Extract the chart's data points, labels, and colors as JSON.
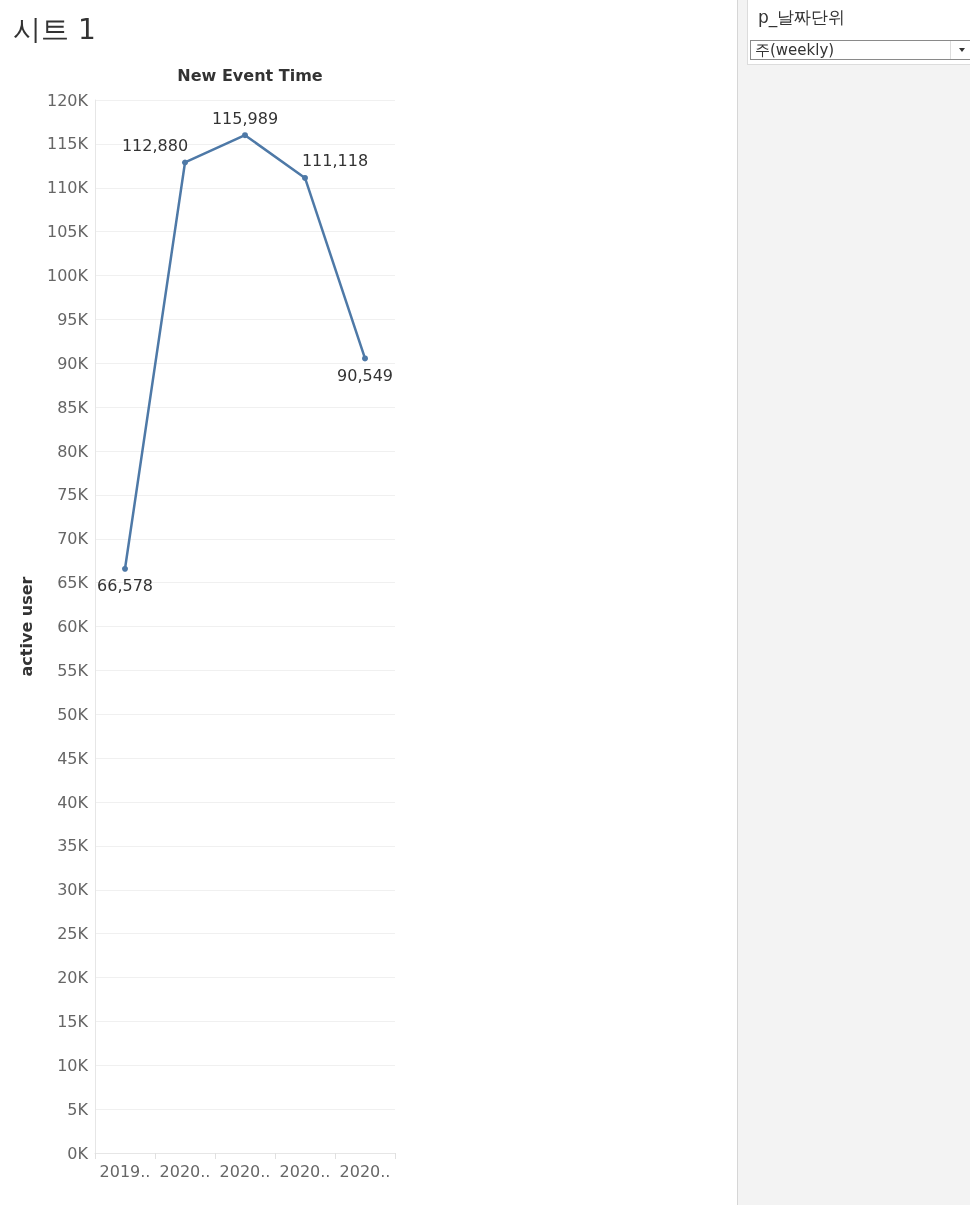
{
  "chart_data": {
    "type": "line",
    "title": "시트 1",
    "xlabel": "New Event Time",
    "ylabel": "active user",
    "categories": [
      "2019..",
      "2020..",
      "2020..",
      "2020..",
      "2020.."
    ],
    "values": [
      66578,
      112880,
      115989,
      111118,
      90549
    ],
    "value_labels": [
      "66,578",
      "112,880",
      "115,989",
      "111,118",
      "90,549"
    ],
    "color": "#4e79a7",
    "ylim": [
      0,
      120000
    ],
    "yticks": [
      {
        "value": 0,
        "label": "0K"
      },
      {
        "value": 5000,
        "label": "5K"
      },
      {
        "value": 10000,
        "label": "10K"
      },
      {
        "value": 15000,
        "label": "15K"
      },
      {
        "value": 20000,
        "label": "20K"
      },
      {
        "value": 25000,
        "label": "25K"
      },
      {
        "value": 30000,
        "label": "30K"
      },
      {
        "value": 35000,
        "label": "35K"
      },
      {
        "value": 40000,
        "label": "40K"
      },
      {
        "value": 45000,
        "label": "45K"
      },
      {
        "value": 50000,
        "label": "50K"
      },
      {
        "value": 55000,
        "label": "55K"
      },
      {
        "value": 60000,
        "label": "60K"
      },
      {
        "value": 65000,
        "label": "65K"
      },
      {
        "value": 70000,
        "label": "70K"
      },
      {
        "value": 75000,
        "label": "75K"
      },
      {
        "value": 80000,
        "label": "80K"
      },
      {
        "value": 85000,
        "label": "85K"
      },
      {
        "value": 90000,
        "label": "90K"
      },
      {
        "value": 95000,
        "label": "95K"
      },
      {
        "value": 100000,
        "label": "100K"
      },
      {
        "value": 105000,
        "label": "105K"
      },
      {
        "value": 110000,
        "label": "110K"
      },
      {
        "value": 115000,
        "label": "115K"
      },
      {
        "value": 120000,
        "label": "120K"
      }
    ],
    "grid": "y",
    "marker": "circle",
    "line_style": "solid",
    "annotations": [
      "p_날짜단위",
      "주(weekly)"
    ]
  }
}
